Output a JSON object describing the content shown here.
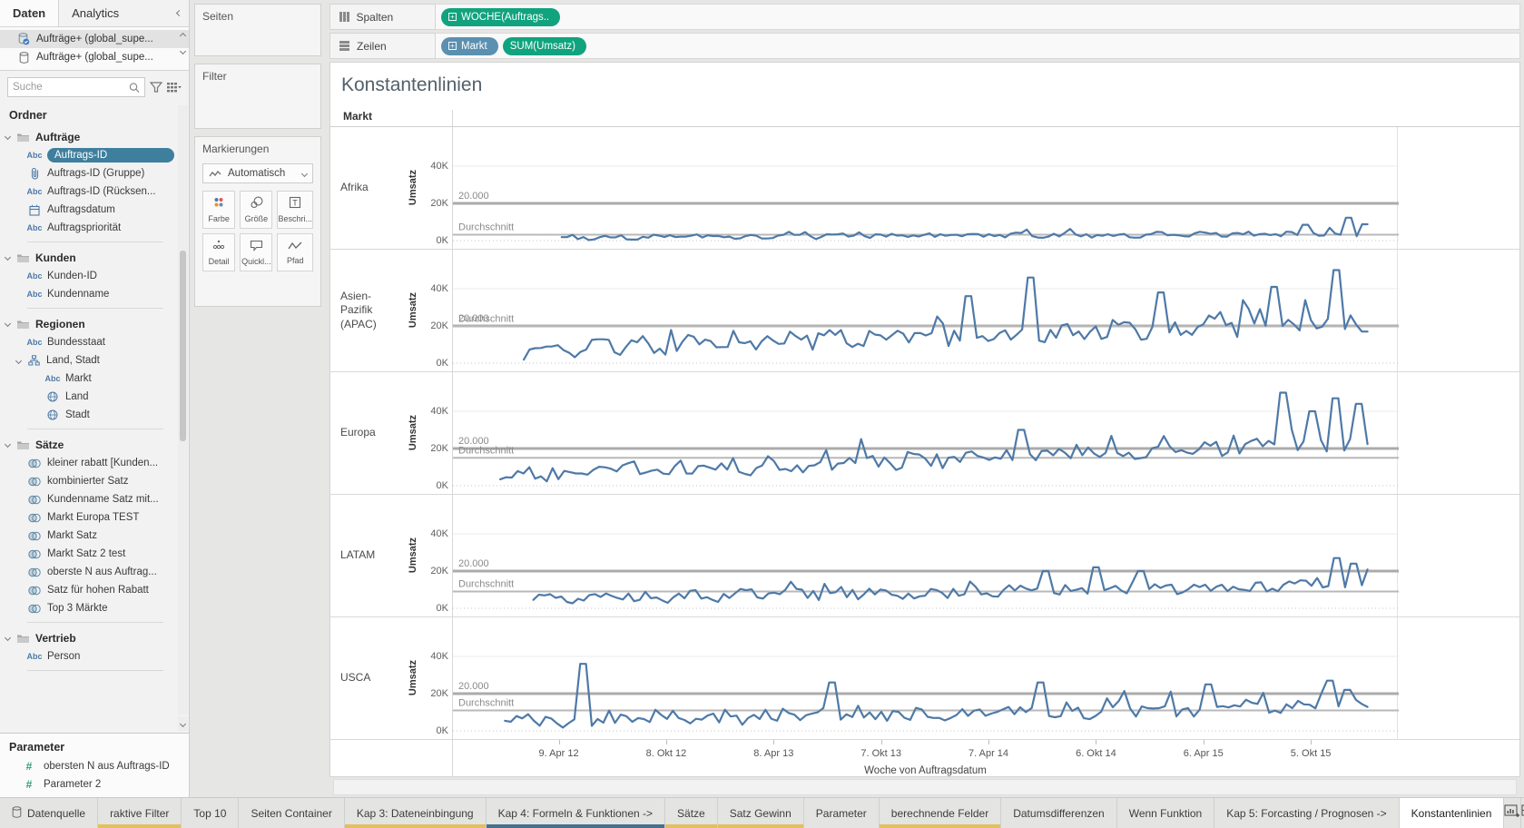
{
  "sidebar": {
    "tabs": {
      "daten": "Daten",
      "analytics": "Analytics"
    },
    "datasources": [
      {
        "label": "Aufträge+ (global_supe...",
        "selected": true
      },
      {
        "label": "Aufträge+ (global_supe...",
        "selected": false
      }
    ],
    "search_placeholder": "Suche",
    "folders_header": "Ordner",
    "sections": [
      {
        "label": "Aufträge",
        "items": [
          {
            "icon": "abc",
            "label": "Auftrags-ID",
            "selected": true
          },
          {
            "icon": "paperclip",
            "label": "Auftrags-ID (Gruppe)"
          },
          {
            "icon": "abc",
            "label": "Auftrags-ID (Rücksen..."
          },
          {
            "icon": "calendar",
            "label": "Auftragsdatum"
          },
          {
            "icon": "abc",
            "label": "Auftragspriorität"
          }
        ]
      },
      {
        "label": "Kunden",
        "items": [
          {
            "icon": "abc",
            "label": "Kunden-ID"
          },
          {
            "icon": "abc",
            "label": "Kundenname"
          }
        ]
      },
      {
        "label": "Regionen",
        "items": [
          {
            "icon": "abc",
            "label": "Bundesstaat"
          },
          {
            "icon": "hierarchy",
            "label": "Land, Stadt",
            "chev": true
          },
          {
            "icon": "abc",
            "label": "Markt",
            "indent": true
          },
          {
            "icon": "globe",
            "label": "Land",
            "indent": true
          },
          {
            "icon": "globe",
            "label": "Stadt",
            "indent": true
          }
        ]
      },
      {
        "label": "Sätze",
        "items": [
          {
            "icon": "venn",
            "label": "kleiner rabatt [Kunden..."
          },
          {
            "icon": "venn",
            "label": "kombinierter Satz"
          },
          {
            "icon": "venn",
            "label": "Kundenname Satz mit..."
          },
          {
            "icon": "venn",
            "label": "Markt Europa TEST"
          },
          {
            "icon": "venn",
            "label": "Markt Satz"
          },
          {
            "icon": "venn",
            "label": "Markt Satz 2 test"
          },
          {
            "icon": "venn",
            "label": "oberste N aus Auftrag..."
          },
          {
            "icon": "venn",
            "label": "Satz für hohen Rabatt"
          },
          {
            "icon": "venn",
            "label": "Top 3 Märkte"
          }
        ]
      },
      {
        "label": "Vertrieb",
        "items": [
          {
            "icon": "abc",
            "label": "Person"
          }
        ]
      }
    ],
    "parameter_header": "Parameter",
    "parameters": [
      "obersten N aus Auftrags-ID",
      "Parameter 2"
    ]
  },
  "cards": {
    "seiten": "Seiten",
    "filter": "Filter",
    "markierungen": "Markierungen",
    "mark_type": "Automatisch",
    "buttons": [
      {
        "icon": "color",
        "label": "Farbe"
      },
      {
        "icon": "size",
        "label": "Größe"
      },
      {
        "icon": "text",
        "label": "Beschri..."
      },
      {
        "icon": "detail",
        "label": "Detail"
      },
      {
        "icon": "tooltip",
        "label": "Quickl..."
      },
      {
        "icon": "path",
        "label": "Pfad"
      }
    ]
  },
  "shelves": {
    "spalten_label": "Spalten",
    "zeilen_label": "Zeilen",
    "spalten_pills": [
      {
        "text": "WOCHE(Auftrags..",
        "color": "green",
        "plusbox": true
      }
    ],
    "zeilen_pills": [
      {
        "text": "Markt",
        "color": "blue",
        "plusbox": true
      },
      {
        "text": "SUM(Umsatz)",
        "color": "green",
        "plusbox": false
      }
    ]
  },
  "sheet": {
    "title": "Konstantenlinien",
    "col_header": "Markt",
    "ylabel": "Umsatz",
    "y_tick_labels": [
      "40K",
      "20K",
      "0K"
    ],
    "const_label": "20.000",
    "avg_label": "Durchschnitt",
    "axis_title": "Woche von Auftragsdatum"
  },
  "chart_data": {
    "type": "line",
    "title": "Konstantenlinien",
    "x_axis": "Woche von Auftragsdatum",
    "x_tick_labels": [
      "9. Apr 12",
      "8. Okt 12",
      "8. Apr 13",
      "7. Okt 13",
      "7. Apr 14",
      "6. Okt 14",
      "6. Apr 15",
      "5. Okt 15"
    ],
    "y_unit": "K",
    "y_ticks": [
      0,
      20,
      40
    ],
    "constant_line_value": 20000,
    "line_color": "#4e79a7",
    "series": [
      {
        "market": "Afrika",
        "avg": 3.2,
        "seed": 7,
        "start": 0.115,
        "base_start": 1.6,
        "base_end": 3.6,
        "noise": 1.1,
        "wobble": 0.5,
        "spike_amp": 3,
        "min": 0.3,
        "spikes": [
          [
            0.9,
            8.5
          ],
          [
            0.947,
            12.3
          ],
          [
            0.962,
            8.8
          ]
        ]
      },
      {
        "market": "Asien-Pazifik (APAC)",
        "avg": 19.8,
        "seed": 11,
        "start": 0.075,
        "base_start": 7,
        "base_end": 22,
        "noise": 4.5,
        "wobble": 1.6,
        "spike_amp": 10,
        "min": 1.2,
        "spikes": [
          [
            0.545,
            36
          ],
          [
            0.61,
            46
          ],
          [
            0.75,
            38
          ],
          [
            0.87,
            41
          ],
          [
            0.937,
            50
          ],
          [
            0.965,
            17
          ]
        ]
      },
      {
        "market": "Europa",
        "avg": 15.0,
        "seed": 23,
        "start": 0.05,
        "base_start": 6,
        "base_end": 22,
        "noise": 4.0,
        "wobble": 1.5,
        "spike_amp": 9,
        "min": 1.2,
        "spikes": [
          [
            0.6,
            30
          ],
          [
            0.876,
            50
          ],
          [
            0.91,
            40
          ],
          [
            0.935,
            47
          ],
          [
            0.957,
            44
          ]
        ]
      },
      {
        "market": "LATAM",
        "avg": 9.0,
        "seed": 5,
        "start": 0.085,
        "base_start": 5.5,
        "base_end": 12,
        "noise": 2.8,
        "wobble": 1.0,
        "spike_amp": 5,
        "min": 0.8,
        "spikes": [
          [
            0.625,
            20
          ],
          [
            0.68,
            22
          ],
          [
            0.73,
            20
          ],
          [
            0.937,
            27
          ],
          [
            0.95,
            24
          ]
        ]
      },
      {
        "market": "USCA",
        "avg": 11.0,
        "seed": 17,
        "start": 0.055,
        "base_start": 5,
        "base_end": 13,
        "noise": 3.5,
        "wobble": 1.2,
        "spike_amp": 7,
        "min": 0.8,
        "spikes": [
          [
            0.136,
            36
          ],
          [
            0.4,
            26
          ],
          [
            0.62,
            26
          ],
          [
            0.8,
            25
          ],
          [
            0.93,
            27
          ],
          [
            0.945,
            22
          ]
        ]
      }
    ]
  },
  "tabbar": {
    "tabs": [
      {
        "label": "Datenquelle",
        "icon": "database",
        "underline": "none"
      },
      {
        "label": "raktive Filter",
        "underline": "yellow"
      },
      {
        "label": "Top 10",
        "underline": "none"
      },
      {
        "label": "Seiten Container",
        "underline": "none"
      },
      {
        "label": "Kap 3: Dateneinbingung",
        "underline": "yellow"
      },
      {
        "label": "Kap 4: Formeln & Funktionen ->",
        "underline": "blue"
      },
      {
        "label": "Sätze",
        "underline": "yellow"
      },
      {
        "label": "Satz Gewinn",
        "underline": "yellow"
      },
      {
        "label": "Parameter",
        "underline": "none"
      },
      {
        "label": "berechnende Felder",
        "underline": "yellow"
      },
      {
        "label": "Datumsdifferenzen",
        "underline": "none"
      },
      {
        "label": "Wenn Funktion",
        "underline": "none"
      },
      {
        "label": "Kap 5: Forcasting / Prognosen ->",
        "underline": "none"
      },
      {
        "label": "Konstantenlinien",
        "underline": "none",
        "active": true
      }
    ],
    "new_buttons": [
      "new-worksheet",
      "new-dashboard",
      "new-story"
    ]
  },
  "colors": {
    "pill_green": "#10a37e",
    "pill_blue": "#5b90b0",
    "selected_field_pill": "#3f7f9e",
    "line_blue": "#4e79a7",
    "tab_underline_yellow": "#e2c05c",
    "tab_underline_blue": "#46708f",
    "field_icon_blue": "#4e79a7",
    "parameter_green": "#2e9e77"
  }
}
